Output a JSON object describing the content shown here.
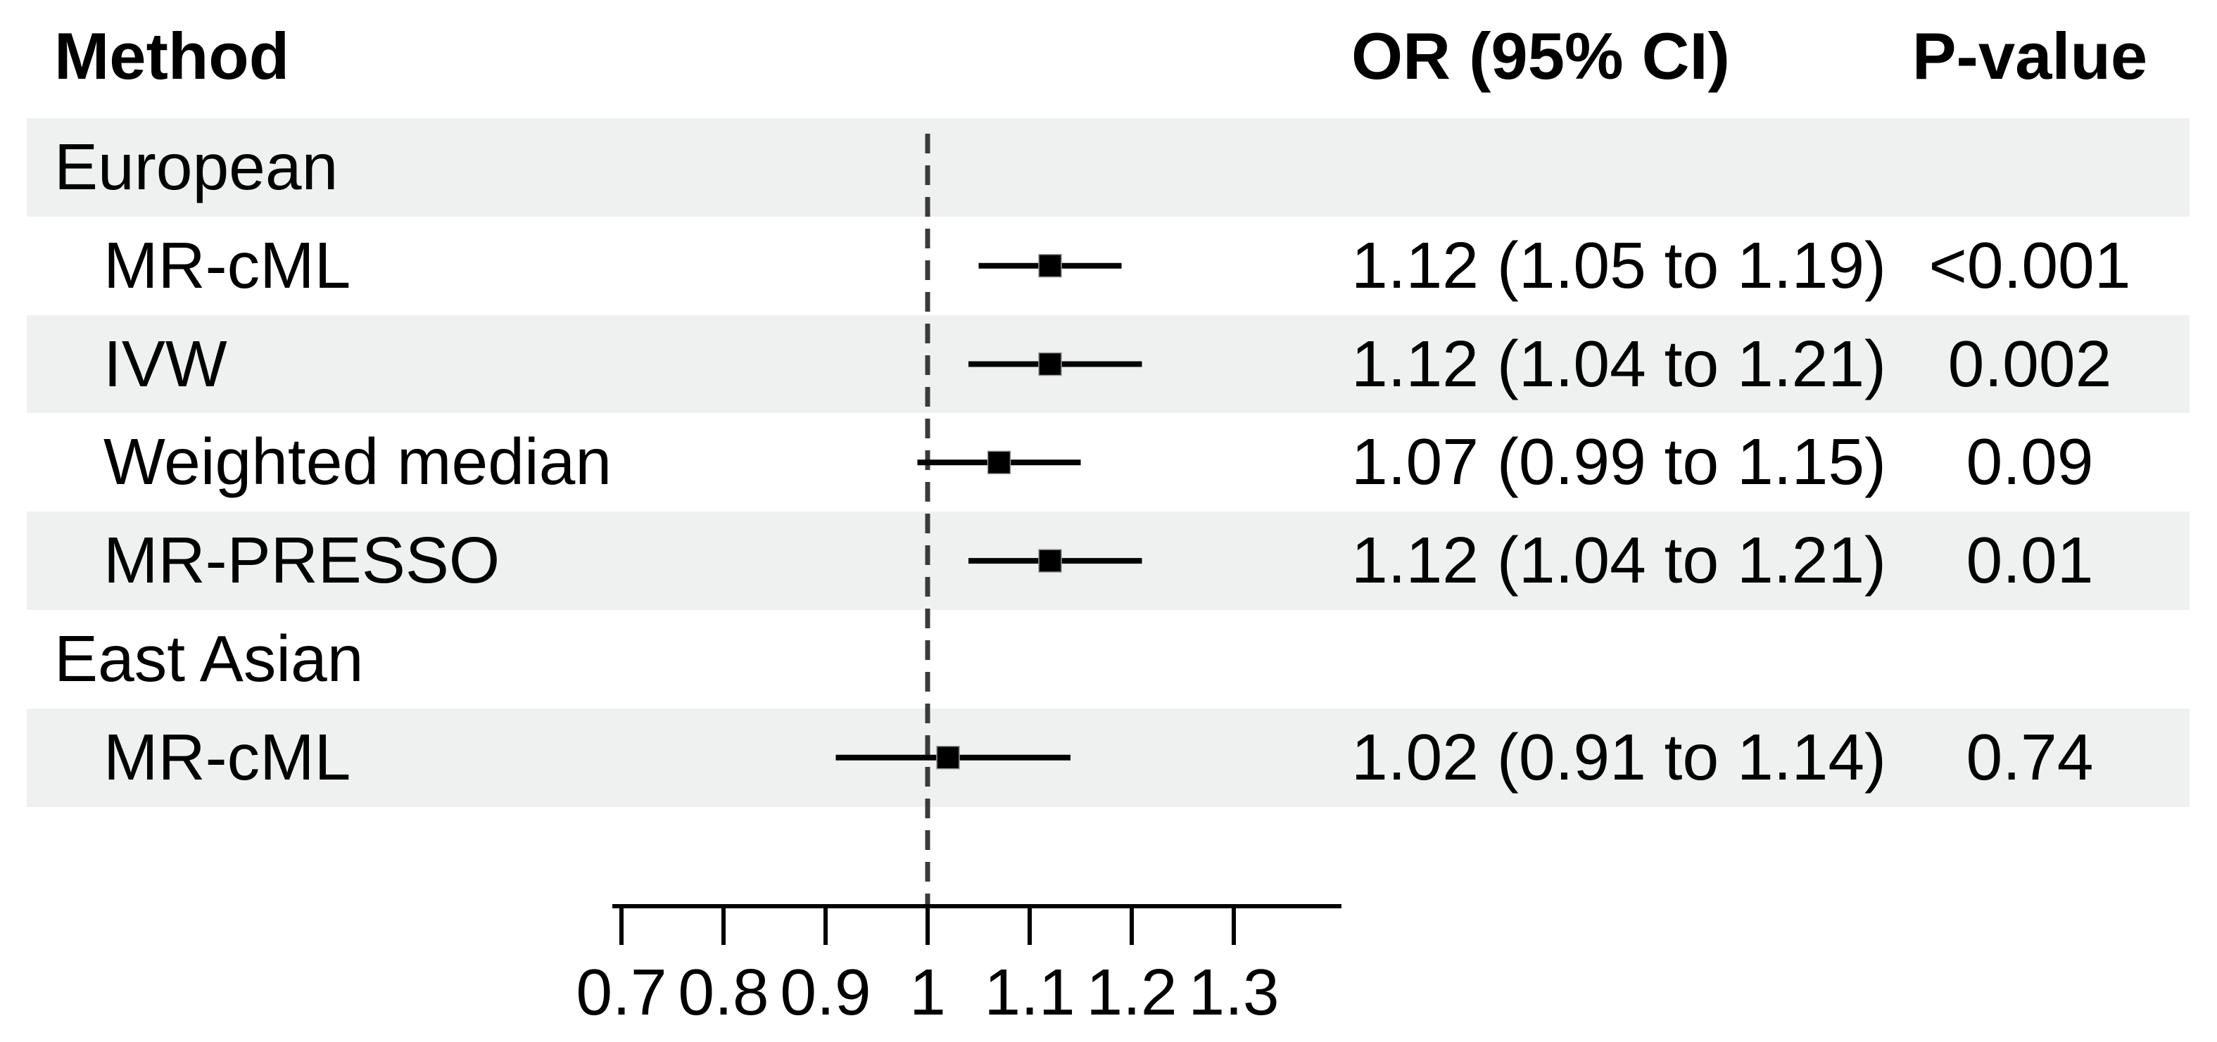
{
  "colors": {
    "band": "#eff1f1",
    "text": "#000000",
    "ref_line": "#3a3a3a",
    "marker": "#000000",
    "axis": "#000000"
  },
  "chart_data": {
    "type": "forest",
    "columns": [
      "Method",
      "OR (95% CI)",
      "P-value"
    ],
    "ref_line": 1.0,
    "axis": {
      "range": [
        0.7,
        1.4
      ],
      "ticks": [
        0.7,
        0.8,
        0.9,
        1.0,
        1.1,
        1.2,
        1.3
      ],
      "tick_labels": [
        "0.7",
        "0.8",
        "0.9",
        "1",
        "1.1",
        "1.2",
        "1.3"
      ]
    },
    "rows": [
      {
        "label": "European",
        "type": "group",
        "shaded": true
      },
      {
        "label": "MR-cML",
        "type": "method",
        "shaded": false,
        "or": 1.12,
        "ci_low": 1.05,
        "ci_high": 1.19,
        "or_text": "1.12 (1.05 to 1.19)",
        "p_text": "<0.001"
      },
      {
        "label": "IVW",
        "type": "method",
        "shaded": true,
        "or": 1.12,
        "ci_low": 1.04,
        "ci_high": 1.21,
        "or_text": "1.12 (1.04 to 1.21)",
        "p_text": "0.002"
      },
      {
        "label": "Weighted median",
        "type": "method",
        "shaded": false,
        "or": 1.07,
        "ci_low": 0.99,
        "ci_high": 1.15,
        "or_text": "1.07 (0.99 to 1.15)",
        "p_text": "0.09"
      },
      {
        "label": "MR-PRESSO",
        "type": "method",
        "shaded": true,
        "or": 1.12,
        "ci_low": 1.04,
        "ci_high": 1.21,
        "or_text": "1.12 (1.04 to 1.21)",
        "p_text": "0.01"
      },
      {
        "label": "East Asian",
        "type": "group",
        "shaded": false
      },
      {
        "label": "MR-cML",
        "type": "method",
        "shaded": true,
        "or": 1.02,
        "ci_low": 0.91,
        "ci_high": 1.14,
        "or_text": "1.02 (0.91 to 1.14)",
        "p_text": "0.74"
      }
    ]
  }
}
